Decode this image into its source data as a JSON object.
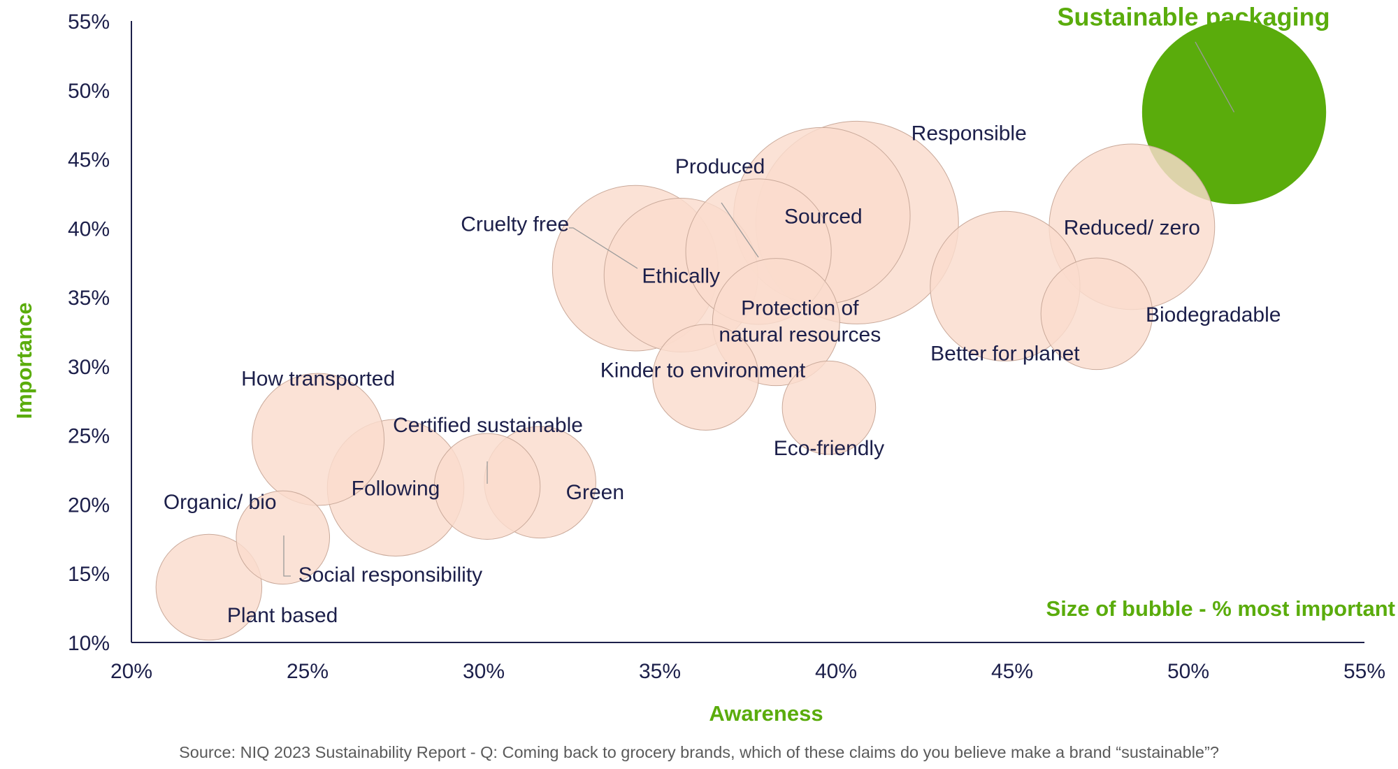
{
  "chart_data": {
    "type": "scatter",
    "xlabel": "Awareness",
    "ylabel": "Importance",
    "xlim": [
      20,
      55
    ],
    "ylim": [
      10,
      55
    ],
    "x_ticks": [
      "20%",
      "25%",
      "30%",
      "35%",
      "40%",
      "45%",
      "50%",
      "55%"
    ],
    "y_ticks": [
      "10%",
      "15%",
      "20%",
      "25%",
      "30%",
      "35%",
      "40%",
      "45%",
      "50%",
      "55%"
    ],
    "grid": false,
    "size_note": "Size of bubble - %  most important",
    "source": "Source: NIQ 2023 Sustainability Report - Q: Coming back to grocery brands, which of these claims do you believe make a brand “sustainable”?",
    "colors": {
      "accent": "#5aac0c",
      "bubble_fill": "#fadccd",
      "bubble_stroke": "#c9a99a",
      "text": "#1c1f4a"
    },
    "points": [
      {
        "label": "Sustainable packaging",
        "x": 51.3,
        "y": 48.4,
        "size": 27,
        "highlight": true
      },
      {
        "label": "Responsible",
        "x": 40.6,
        "y": 40.4,
        "size": 33
      },
      {
        "label": "Sourced",
        "x": 39.6,
        "y": 40.9,
        "size": 25
      },
      {
        "label": "Produced",
        "x": 37.8,
        "y": 38.3,
        "size": 17
      },
      {
        "label": "Ethically",
        "x": 35.6,
        "y": 36.6,
        "size": 19
      },
      {
        "label": "Cruelty free",
        "x": 34.3,
        "y": 37.1,
        "size": 22
      },
      {
        "label": "Protection of natural resources",
        "x": 38.3,
        "y": 33.2,
        "size": 13
      },
      {
        "label": "Reduced/ zero",
        "x": 48.4,
        "y": 40.1,
        "size": 22
      },
      {
        "label": "Better for planet",
        "x": 44.8,
        "y": 35.8,
        "size": 18
      },
      {
        "label": "Biodegradable",
        "x": 47.4,
        "y": 33.8,
        "size": 10
      },
      {
        "label": "Kinder to environment",
        "x": 36.3,
        "y": 29.2,
        "size": 9
      },
      {
        "label": "Eco-friendly",
        "x": 39.8,
        "y": 27.0,
        "size": 7
      },
      {
        "label": "How transported",
        "x": 25.3,
        "y": 24.7,
        "size": 14
      },
      {
        "label": "Following",
        "x": 27.5,
        "y": 21.2,
        "size": 15
      },
      {
        "label": "Certified sustainable",
        "x": 30.1,
        "y": 21.3,
        "size": 9
      },
      {
        "label": "Green",
        "x": 31.6,
        "y": 21.6,
        "size": 10
      },
      {
        "label": "Social responsibility",
        "x": 24.3,
        "y": 17.6,
        "size": 7
      },
      {
        "label": "Organic/ bio",
        "x": 24.3,
        "y": 17.6,
        "size": 0
      },
      {
        "label": "Plant based",
        "x": 22.2,
        "y": 14.0,
        "size": 9
      }
    ]
  }
}
